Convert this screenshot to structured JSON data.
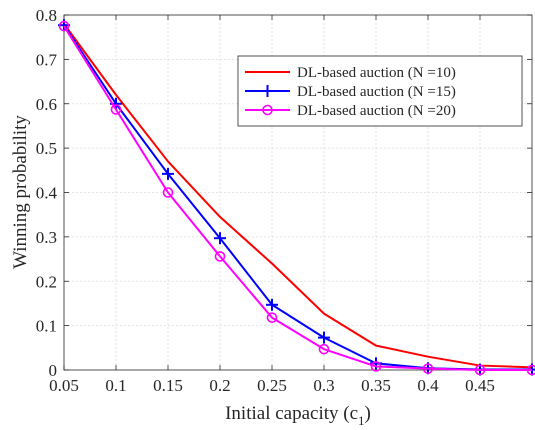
{
  "chart_data": {
    "type": "line",
    "xlabel": "Initial capacity (c",
    "xlabel_subscript": "1",
    "xlabel_suffix": ")",
    "ylabel": "Winning probability",
    "xlim": [
      0.05,
      0.5
    ],
    "ylim": [
      0,
      0.8
    ],
    "xticks": [
      "0.05",
      "0.1",
      "0.15",
      "0.2",
      "0.25",
      "0.3",
      "0.35",
      "0.4",
      "0.45"
    ],
    "xtick_values": [
      0.05,
      0.1,
      0.15,
      0.2,
      0.25,
      0.3,
      0.35,
      0.4,
      0.45
    ],
    "yticks": [
      "0",
      "0.1",
      "0.2",
      "0.3",
      "0.4",
      "0.5",
      "0.6",
      "0.7",
      "0.8"
    ],
    "ytick_values": [
      0,
      0.1,
      0.2,
      0.3,
      0.4,
      0.5,
      0.6,
      0.7,
      0.8
    ],
    "grid": true,
    "legend_position": "top-right",
    "x": [
      0.05,
      0.1,
      0.15,
      0.2,
      0.25,
      0.3,
      0.35,
      0.4,
      0.45,
      0.5
    ],
    "series": [
      {
        "name": "DL-based auction (N =10)",
        "color": "#ff0000",
        "marker": "none",
        "values": [
          0.78,
          0.62,
          0.47,
          0.345,
          0.24,
          0.127,
          0.055,
          0.03,
          0.01,
          0.006
        ]
      },
      {
        "name": "DL-based auction (N =15)",
        "color": "#0000ff",
        "marker": "plus",
        "values": [
          0.777,
          0.6,
          0.442,
          0.297,
          0.147,
          0.073,
          0.015,
          0.004,
          0.001,
          0.001
        ]
      },
      {
        "name": "DL-based auction (N =20)",
        "color": "#ff00ff",
        "marker": "circle",
        "values": [
          0.775,
          0.587,
          0.4,
          0.256,
          0.118,
          0.047,
          0.008,
          0.003,
          0.0,
          0.0
        ]
      }
    ]
  }
}
